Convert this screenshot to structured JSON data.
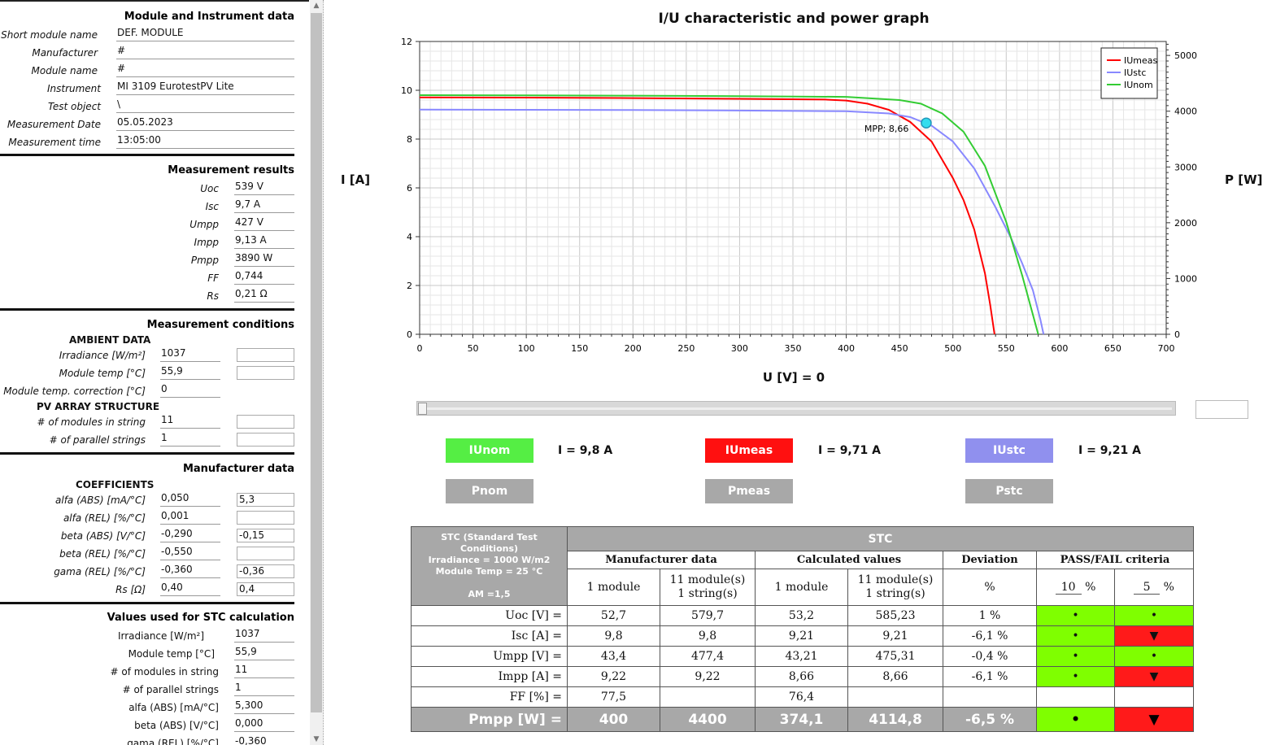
{
  "module_section": {
    "title": "Module and Instrument data",
    "rows": [
      {
        "label": "Short module name",
        "value": "DEF. MODULE"
      },
      {
        "label": "Manufacturer",
        "value": "#"
      },
      {
        "label": "Module name",
        "value": "#"
      },
      {
        "label": "Instrument",
        "value": "MI 3109 EurotestPV Lite"
      },
      {
        "label": "Test object",
        "value": "\\"
      },
      {
        "label": "Measurement Date",
        "value": "05.05.2023"
      },
      {
        "label": "Measurement time",
        "value": "13:05:00"
      }
    ]
  },
  "results_section": {
    "title": "Measurement results",
    "rows": [
      {
        "label": "Uoc",
        "value": "539 V"
      },
      {
        "label": "Isc",
        "value": "9,7 A"
      },
      {
        "label": "Umpp",
        "value": "427 V"
      },
      {
        "label": "Impp",
        "value": "9,13 A"
      },
      {
        "label": "Pmpp",
        "value": "3890 W"
      },
      {
        "label": "FF",
        "value": "0,744"
      },
      {
        "label": "Rs",
        "value": "0,21 Ω"
      }
    ]
  },
  "conditions_section": {
    "title": "Measurement conditions",
    "ambient_title": "AMBIENT DATA",
    "ambient": [
      {
        "label": "Irradiance  [W/m²]",
        "value": "1037"
      },
      {
        "label": "Module temp  [°C]",
        "value": "55,9"
      },
      {
        "label": "Module temp. correction  [°C]",
        "value": "0"
      }
    ],
    "array_title": "PV ARRAY STRUCTURE",
    "array": [
      {
        "label": "# of modules in string",
        "value": "11"
      },
      {
        "label": "# of parallel strings",
        "value": "1"
      }
    ]
  },
  "manufacturer_section": {
    "title": "Manufacturer data",
    "coef_title": "COEFFICIENTS",
    "rows": [
      {
        "label": "alfa (ABS) [mA/°C]",
        "value": "0,050",
        "box": "5,3"
      },
      {
        "label": "alfa (REL) [%/°C]",
        "value": "0,001",
        "box": ""
      },
      {
        "label": "beta (ABS) [V/°C]",
        "value": "-0,290",
        "box": "-0,15"
      },
      {
        "label": "beta (REL) [%/°C]",
        "value": "-0,550",
        "box": ""
      },
      {
        "label": "gama (REL) [%/°C]",
        "value": "-0,360",
        "box": "-0,36"
      },
      {
        "label": "Rs [Ω]",
        "value": "0,40",
        "box": "0,4"
      }
    ]
  },
  "stc_values_section": {
    "title": "Values used for STC calculation",
    "rows": [
      {
        "label": "Irradiance [W/m²]",
        "value": "1037"
      },
      {
        "label": "Module temp [°C]",
        "value": "55,9"
      },
      {
        "label": "# of modules in string",
        "value": "11"
      },
      {
        "label": "# of parallel strings",
        "value": "1"
      },
      {
        "label": "alfa (ABS) [mA/°C]",
        "value": "5,300"
      },
      {
        "label": "beta (ABS) [V/°C]",
        "value": "0,000"
      },
      {
        "label": "gama (REL) [%/°C]",
        "value": "-0,360"
      }
    ]
  },
  "chart": {
    "title": "I/U characteristic and power graph",
    "ylabel": "I [A]",
    "y2label": "P [W]",
    "xlabel": "U [V] = 0",
    "mpp_label": "MPP; 8,66"
  },
  "chart_data": {
    "type": "line",
    "title": "I/U characteristic and power graph",
    "xlabel": "U [V]",
    "ylabel": "I [A]",
    "y2label": "P [W]",
    "xlim": [
      0,
      700
    ],
    "ylim": [
      0,
      12
    ],
    "y2lim": [
      0,
      5250
    ],
    "x_ticks": [
      0,
      50,
      100,
      150,
      200,
      250,
      300,
      350,
      400,
      450,
      500,
      550,
      600,
      650,
      700
    ],
    "y_ticks": [
      0,
      2,
      4,
      6,
      8,
      10,
      12
    ],
    "y2_ticks": [
      0,
      1000,
      2000,
      3000,
      4000,
      5000
    ],
    "grid": true,
    "legend": "top-right",
    "series": [
      {
        "name": "IUmeas",
        "color": "#ff0000",
        "x": [
          0,
          100,
          200,
          300,
          380,
          400,
          420,
          440,
          460,
          480,
          500,
          510,
          520,
          530,
          535,
          539
        ],
        "y": [
          9.71,
          9.7,
          9.68,
          9.65,
          9.62,
          9.58,
          9.45,
          9.2,
          8.7,
          7.9,
          6.4,
          5.5,
          4.3,
          2.5,
          1.2,
          0
        ]
      },
      {
        "name": "IUstc",
        "color": "#8888ff",
        "x": [
          0,
          100,
          200,
          300,
          400,
          440,
          460,
          480,
          500,
          520,
          540,
          555,
          565,
          575,
          582,
          585
        ],
        "y": [
          9.21,
          9.2,
          9.19,
          9.17,
          9.14,
          9.05,
          8.9,
          8.55,
          7.9,
          6.8,
          5.2,
          3.9,
          2.9,
          1.8,
          0.6,
          0
        ]
      },
      {
        "name": "IUnom",
        "color": "#33cc33",
        "x": [
          0,
          100,
          200,
          300,
          400,
          450,
          470,
          490,
          510,
          530,
          550,
          565,
          575,
          580
        ],
        "y": [
          9.8,
          9.79,
          9.78,
          9.76,
          9.73,
          9.6,
          9.45,
          9.05,
          8.3,
          6.9,
          4.6,
          2.4,
          0.8,
          0
        ]
      }
    ],
    "annotations": [
      {
        "text": "MPP; 8,66",
        "x": 475,
        "y": 8.66
      }
    ]
  },
  "buttons": {
    "iunom": {
      "label": "IUnom",
      "color": "#55ee44",
      "value": "I =  9,8 A"
    },
    "iumeas": {
      "label": "IUmeas",
      "color": "#ff1010",
      "value": "I =  9,71 A"
    },
    "iustc": {
      "label": "IUstc",
      "color": "#9090ee",
      "value": "I =  9,21 A"
    },
    "pnom": "Pnom",
    "pmeas": "Pmeas",
    "pstc": "Pstc"
  },
  "stc_table": {
    "corner_lines": [
      "STC (Standard Test Conditions)",
      "Irradiance = 1000 W/m2",
      "Module Temp = 25 °C",
      "AM =1,5"
    ],
    "stc": "STC",
    "manufacturer": "Manufacturer data",
    "calculated": "Calculated values",
    "deviation": "Deviation",
    "criteria": "PASS/FAIL criteria",
    "one_module": "1 module",
    "many_1": "11 module(s)",
    "many_2": "1 string(s)",
    "percent": "%",
    "crit1": "10",
    "crit2": "5",
    "rows": [
      {
        "label": "Uoc [V] =",
        "m1": "52,7",
        "mn": "579,7",
        "c1": "53,2",
        "cn": "585,23",
        "dev": "1  %",
        "p1": "•",
        "p2": "•"
      },
      {
        "label": "Isc [A] =",
        "m1": "9,8",
        "mn": "9,8",
        "c1": "9,21",
        "cn": "9,21",
        "dev": "-6,1  %",
        "p1": "•",
        "p2": "▼"
      },
      {
        "label": "Umpp [V] =",
        "m1": "43,4",
        "mn": "477,4",
        "c1": "43,21",
        "cn": "475,31",
        "dev": "-0,4  %",
        "p1": "•",
        "p2": "•"
      },
      {
        "label": "Impp [A] =",
        "m1": "9,22",
        "mn": "9,22",
        "c1": "8,66",
        "cn": "8,66",
        "dev": "-6,1  %",
        "p1": "•",
        "p2": "▼"
      },
      {
        "label": "FF [%] =",
        "m1": "77,5",
        "mn": "",
        "c1": "76,4",
        "cn": "",
        "dev": "",
        "p1": "",
        "p2": ""
      },
      {
        "label": "Pmpp [W] =",
        "m1": "400",
        "mn": "4400",
        "c1": "374,1",
        "cn": "4114,8",
        "dev": "-6,5  %",
        "p1": "•",
        "p2": "▼"
      }
    ]
  }
}
